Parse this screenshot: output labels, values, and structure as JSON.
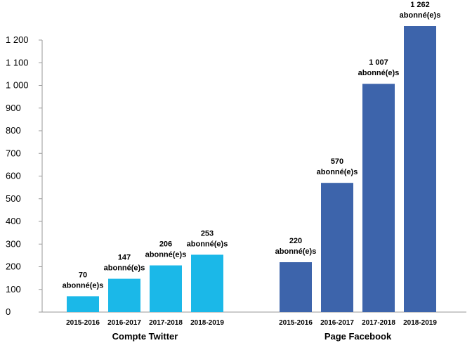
{
  "chart_data": {
    "type": "bar",
    "title": "",
    "xlabel": "",
    "ylabel": "",
    "ylim": [
      0,
      1300
    ],
    "yticks": [
      0,
      100,
      200,
      300,
      400,
      500,
      600,
      700,
      800,
      900,
      1000,
      1100,
      1200
    ],
    "ytick_labels": [
      "0",
      "100",
      "200",
      "300",
      "400",
      "500",
      "600",
      "700",
      "800",
      "900",
      "1 000",
      "1 100",
      "1 200"
    ],
    "grid": false,
    "groups": [
      {
        "name": "Compte Twitter",
        "color": "#1BB8E8",
        "categories": [
          "2015-2016",
          "2016-2017",
          "2017-2018",
          "2018-2019"
        ],
        "values": [
          70,
          147,
          206,
          253
        ],
        "value_labels": [
          "70",
          "147",
          "206",
          "253"
        ],
        "unit_labels": [
          "abonné(e)s",
          "abonné(e)s",
          "abonné(e)s",
          "abonné(e)s"
        ]
      },
      {
        "name": "Page Facebook",
        "color": "#3D64AB",
        "categories": [
          "2015-2016",
          "2016-2017",
          "2017-2018",
          "2018-2019"
        ],
        "values": [
          220,
          570,
          1007,
          1262
        ],
        "value_labels": [
          "220",
          "570",
          "1 007",
          "1 262"
        ],
        "unit_labels": [
          "abonné(e)s",
          "abonné(e)s",
          "abonné(e)s",
          "abonné(e)s"
        ]
      }
    ]
  }
}
